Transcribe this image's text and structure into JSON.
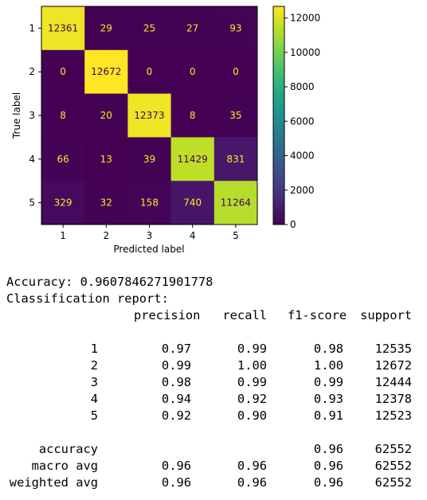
{
  "chart_data": {
    "type": "heatmap",
    "title": "",
    "xlabel": "Predicted label",
    "ylabel": "True label",
    "x_categories": [
      "1",
      "2",
      "3",
      "4",
      "5"
    ],
    "y_categories": [
      "1",
      "2",
      "3",
      "4",
      "5"
    ],
    "matrix": [
      [
        12361,
        29,
        25,
        27,
        93
      ],
      [
        0,
        12672,
        0,
        0,
        0
      ],
      [
        8,
        20,
        12373,
        8,
        35
      ],
      [
        66,
        13,
        39,
        11429,
        831
      ],
      [
        329,
        32,
        158,
        740,
        11264
      ]
    ],
    "colormap": "viridis",
    "colorbar": {
      "vmin": 0,
      "vmax": 12672,
      "ticks": [
        0,
        2000,
        4000,
        6000,
        8000,
        10000,
        12000
      ]
    },
    "colors": {
      "low": "#440154",
      "high": "#fde725",
      "text_on_dark": "#fde725",
      "text_on_light": "#440154"
    }
  },
  "report": {
    "accuracy_line": "Accuracy: 0.9607846271901778",
    "title": "Classification report:",
    "headers": [
      "precision",
      "recall",
      "f1-score",
      "support"
    ],
    "rows": [
      {
        "label": "1",
        "precision": "0.97",
        "recall": "0.99",
        "f1": "0.98",
        "support": "12535"
      },
      {
        "label": "2",
        "precision": "0.99",
        "recall": "1.00",
        "f1": "1.00",
        "support": "12672"
      },
      {
        "label": "3",
        "precision": "0.98",
        "recall": "0.99",
        "f1": "0.99",
        "support": "12444"
      },
      {
        "label": "4",
        "precision": "0.94",
        "recall": "0.92",
        "f1": "0.93",
        "support": "12378"
      },
      {
        "label": "5",
        "precision": "0.92",
        "recall": "0.90",
        "f1": "0.91",
        "support": "12523"
      }
    ],
    "summary": [
      {
        "label": "accuracy",
        "precision": "",
        "recall": "",
        "f1": "0.96",
        "support": "62552"
      },
      {
        "label": "macro avg",
        "precision": "0.96",
        "recall": "0.96",
        "f1": "0.96",
        "support": "62552"
      },
      {
        "label": "weighted avg",
        "precision": "0.96",
        "recall": "0.96",
        "f1": "0.96",
        "support": "62552"
      }
    ]
  }
}
